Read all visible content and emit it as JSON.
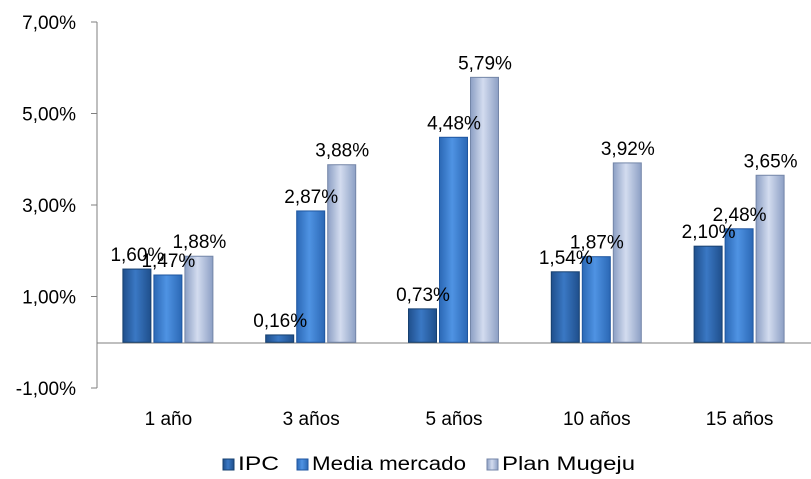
{
  "chart_data": {
    "type": "bar",
    "title": "",
    "xlabel": "",
    "ylabel": "",
    "categories": [
      "1 año",
      "3 años",
      "5 años",
      "10 años",
      "15 años"
    ],
    "series": [
      {
        "name": "IPC",
        "values": [
          1.6,
          0.16,
          0.73,
          1.54,
          2.1
        ],
        "labels": [
          "1,60%",
          "0,16%",
          "0,73%",
          "1,54%",
          "2,10%"
        ]
      },
      {
        "name": "Media mercado",
        "values": [
          1.47,
          2.87,
          4.48,
          1.87,
          2.48
        ],
        "labels": [
          "1,47%",
          "2,87%",
          "4,48%",
          "1,87%",
          "2,48%"
        ]
      },
      {
        "name": "Plan Mugeju",
        "values": [
          1.88,
          3.88,
          5.79,
          3.92,
          3.65
        ],
        "labels": [
          "1,88%",
          "3,88%",
          "5,79%",
          "3,92%",
          "3,65%"
        ]
      }
    ],
    "ylim": [
      -1,
      7
    ],
    "yticks": [
      -1,
      1,
      3,
      5,
      7
    ],
    "ytick_labels": [
      "-1,00%",
      "1,00%",
      "3,00%",
      "5,00%",
      "7,00%"
    ],
    "grid": false,
    "legend_position": "bottom",
    "colors": {
      "IPC": "#2a62a8",
      "Media mercado": "#3a7bd0",
      "Plan Mugeju": "#a5b6d6"
    }
  }
}
